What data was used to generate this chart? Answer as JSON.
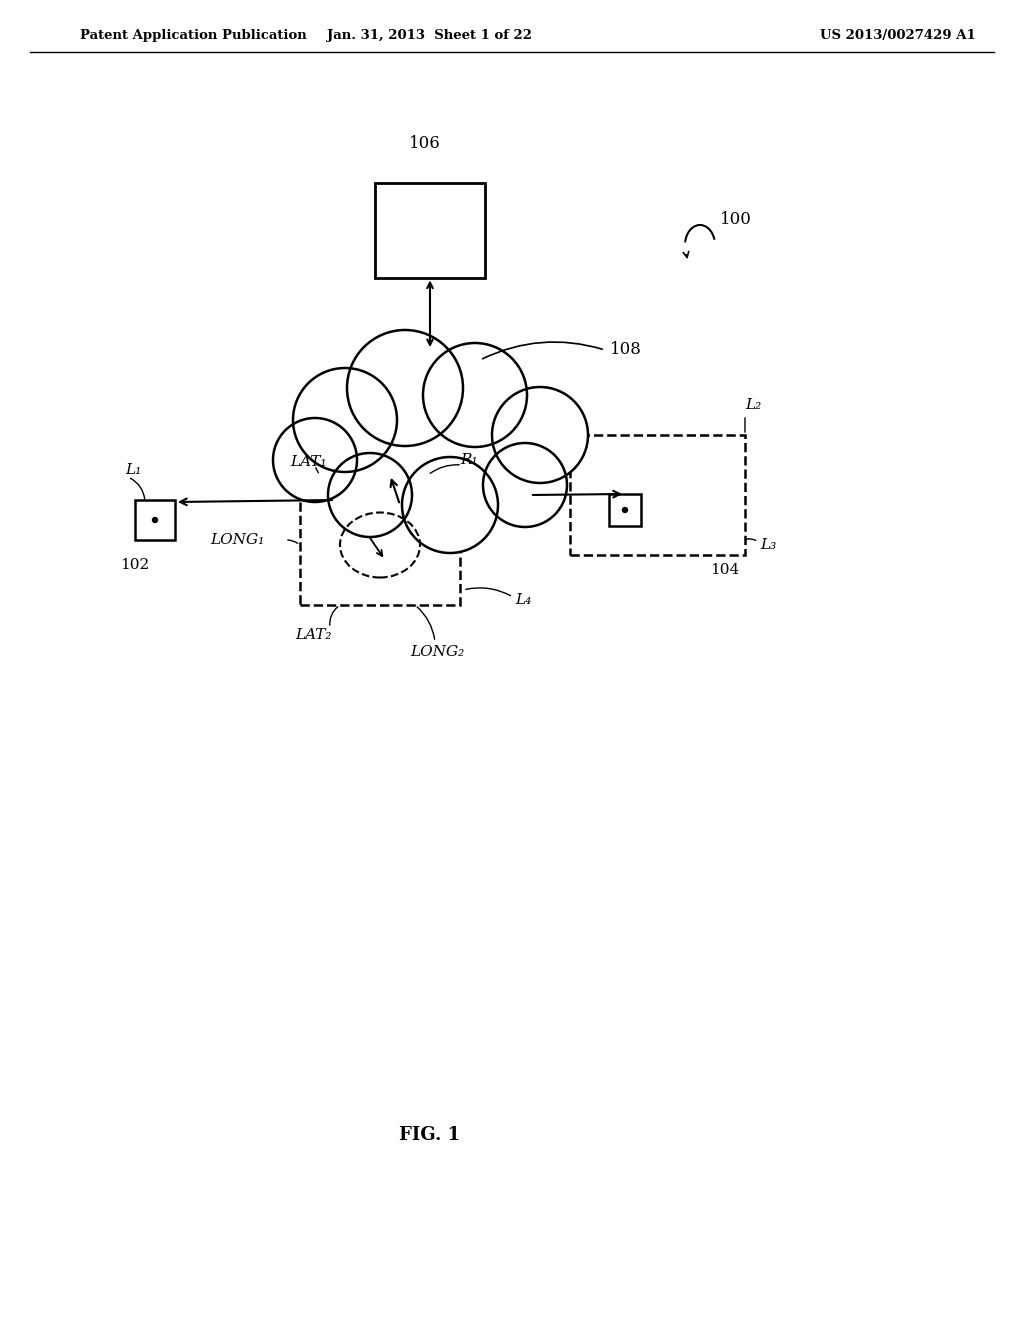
{
  "bg_color": "#ffffff",
  "line_color": "#000000",
  "header_left": "Patent Application Publication",
  "header_mid": "Jan. 31, 2013  Sheet 1 of 22",
  "header_right": "US 2013/0027429 A1",
  "fig_label": "FIG. 1",
  "label_106": "106",
  "label_100": "100",
  "label_108": "108",
  "label_102": "102",
  "label_104": "104",
  "label_L1": "L₁",
  "label_L2": "L₂",
  "label_L3": "L₃",
  "label_L4": "L₄",
  "label_R1": "R₁",
  "label_LAT1": "LAT₁",
  "label_LAT2": "LAT₂",
  "label_LONG1": "LONG₁",
  "label_LONG2": "LONG₂"
}
